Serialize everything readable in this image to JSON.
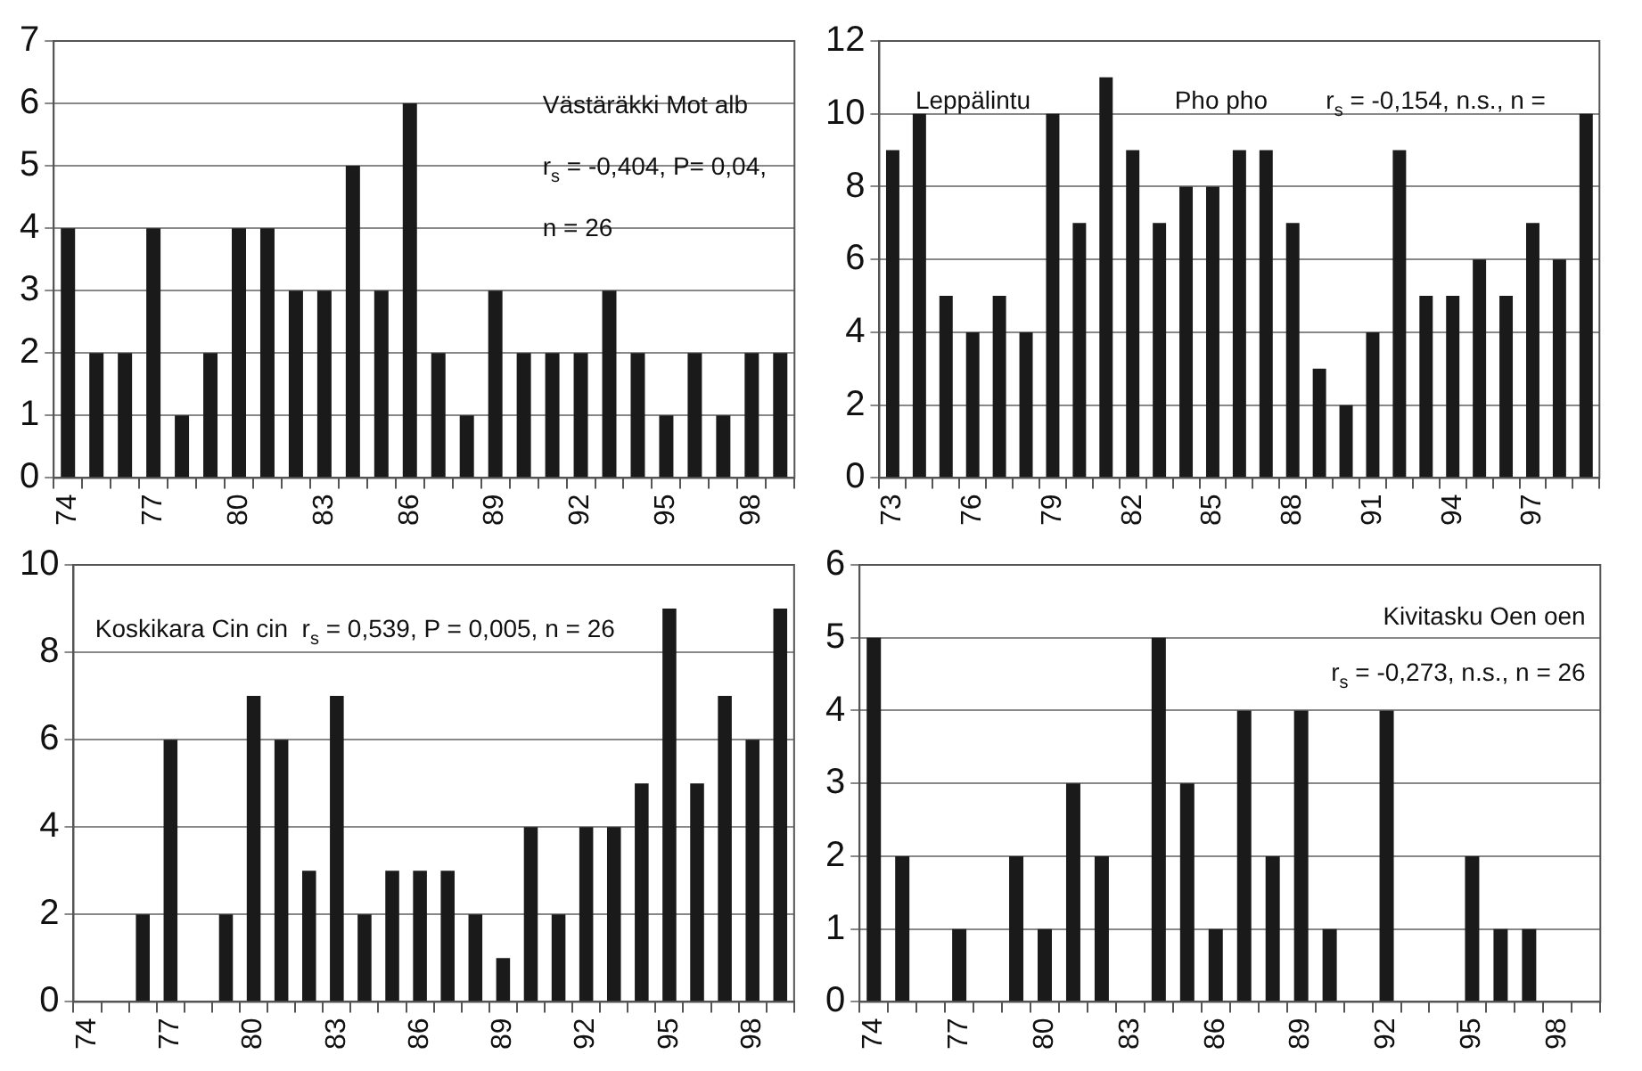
{
  "chart_data": [
    {
      "type": "bar",
      "categories": [
        "74",
        null,
        null,
        "77",
        null,
        null,
        "80",
        null,
        null,
        "83",
        null,
        null,
        "86",
        null,
        null,
        "89",
        null,
        null,
        "92",
        null,
        null,
        "95",
        null,
        null,
        "98",
        null
      ],
      "values": [
        4,
        2,
        2,
        4,
        1,
        2,
        4,
        4,
        3,
        3,
        5,
        3,
        6,
        2,
        1,
        3,
        2,
        2,
        2,
        3,
        2,
        1,
        2,
        1,
        2,
        2
      ],
      "color": "#1a1a1a",
      "ylim": [
        0,
        7
      ],
      "yticks": [
        0,
        1,
        2,
        3,
        4,
        5,
        6,
        7
      ],
      "grid": "y",
      "legend": false,
      "annotations": [
        "Västäräkki Mot alb",
        "r$_{s}$ = -0,404, P= 0,04,",
        "n = 26"
      ]
    },
    {
      "type": "bar",
      "categories": [
        "73",
        null,
        null,
        "76",
        null,
        null,
        "79",
        null,
        null,
        "82",
        null,
        null,
        "85",
        null,
        null,
        "88",
        null,
        null,
        "91",
        null,
        null,
        "94",
        null,
        null,
        "97",
        null,
        null
      ],
      "values": [
        9,
        10,
        5,
        4,
        5,
        4,
        10,
        7,
        11,
        9,
        7,
        8,
        8,
        9,
        9,
        7,
        3,
        2,
        4,
        9,
        5,
        5,
        6,
        5,
        7,
        6,
        10
      ],
      "color": "#1a1a1a",
      "ylim": [
        0,
        12
      ],
      "yticks": [
        0,
        2,
        4,
        6,
        8,
        10,
        12
      ],
      "grid": "y",
      "legend": false,
      "annotations": [
        "Leppälintu",
        "Pho pho",
        "r$_{s}$ = -0,154, n.s., n ="
      ]
    },
    {
      "type": "bar",
      "categories": [
        "74",
        null,
        null,
        "77",
        null,
        null,
        "80",
        null,
        null,
        "83",
        null,
        null,
        "86",
        null,
        null,
        "89",
        null,
        null,
        "92",
        null,
        null,
        "95",
        null,
        null,
        "98",
        null
      ],
      "values": [
        0,
        0,
        2,
        6,
        0,
        2,
        7,
        6,
        3,
        7,
        2,
        3,
        3,
        3,
        2,
        1,
        4,
        2,
        4,
        4,
        5,
        9,
        5,
        7,
        6,
        9
      ],
      "color": "#1a1a1a",
      "ylim": [
        0,
        10
      ],
      "yticks": [
        0,
        2,
        4,
        6,
        8,
        10
      ],
      "grid": "y",
      "legend": false,
      "annotations": [
        "Koskikara Cin cin  r$_{s}$ = 0,539, P = 0,005, n = 26"
      ]
    },
    {
      "type": "bar",
      "categories": [
        "74",
        null,
        null,
        "77",
        null,
        null,
        "80",
        null,
        null,
        "83",
        null,
        null,
        "86",
        null,
        null,
        "89",
        null,
        null,
        "92",
        null,
        null,
        "95",
        null,
        null,
        "98",
        null
      ],
      "values": [
        5,
        2,
        0,
        1,
        0,
        2,
        1,
        3,
        2,
        0,
        5,
        3,
        1,
        4,
        2,
        4,
        1,
        0,
        4,
        0,
        0,
        2,
        1,
        1,
        0,
        0
      ],
      "color": "#1a1a1a",
      "ylim": [
        0,
        6
      ],
      "yticks": [
        0,
        1,
        2,
        3,
        4,
        5,
        6
      ],
      "grid": "y",
      "legend": false,
      "annotations": [
        "Kivitasku Oen oen",
        "r$_{s}$ = -0,273, n.s., n = 26"
      ]
    }
  ]
}
